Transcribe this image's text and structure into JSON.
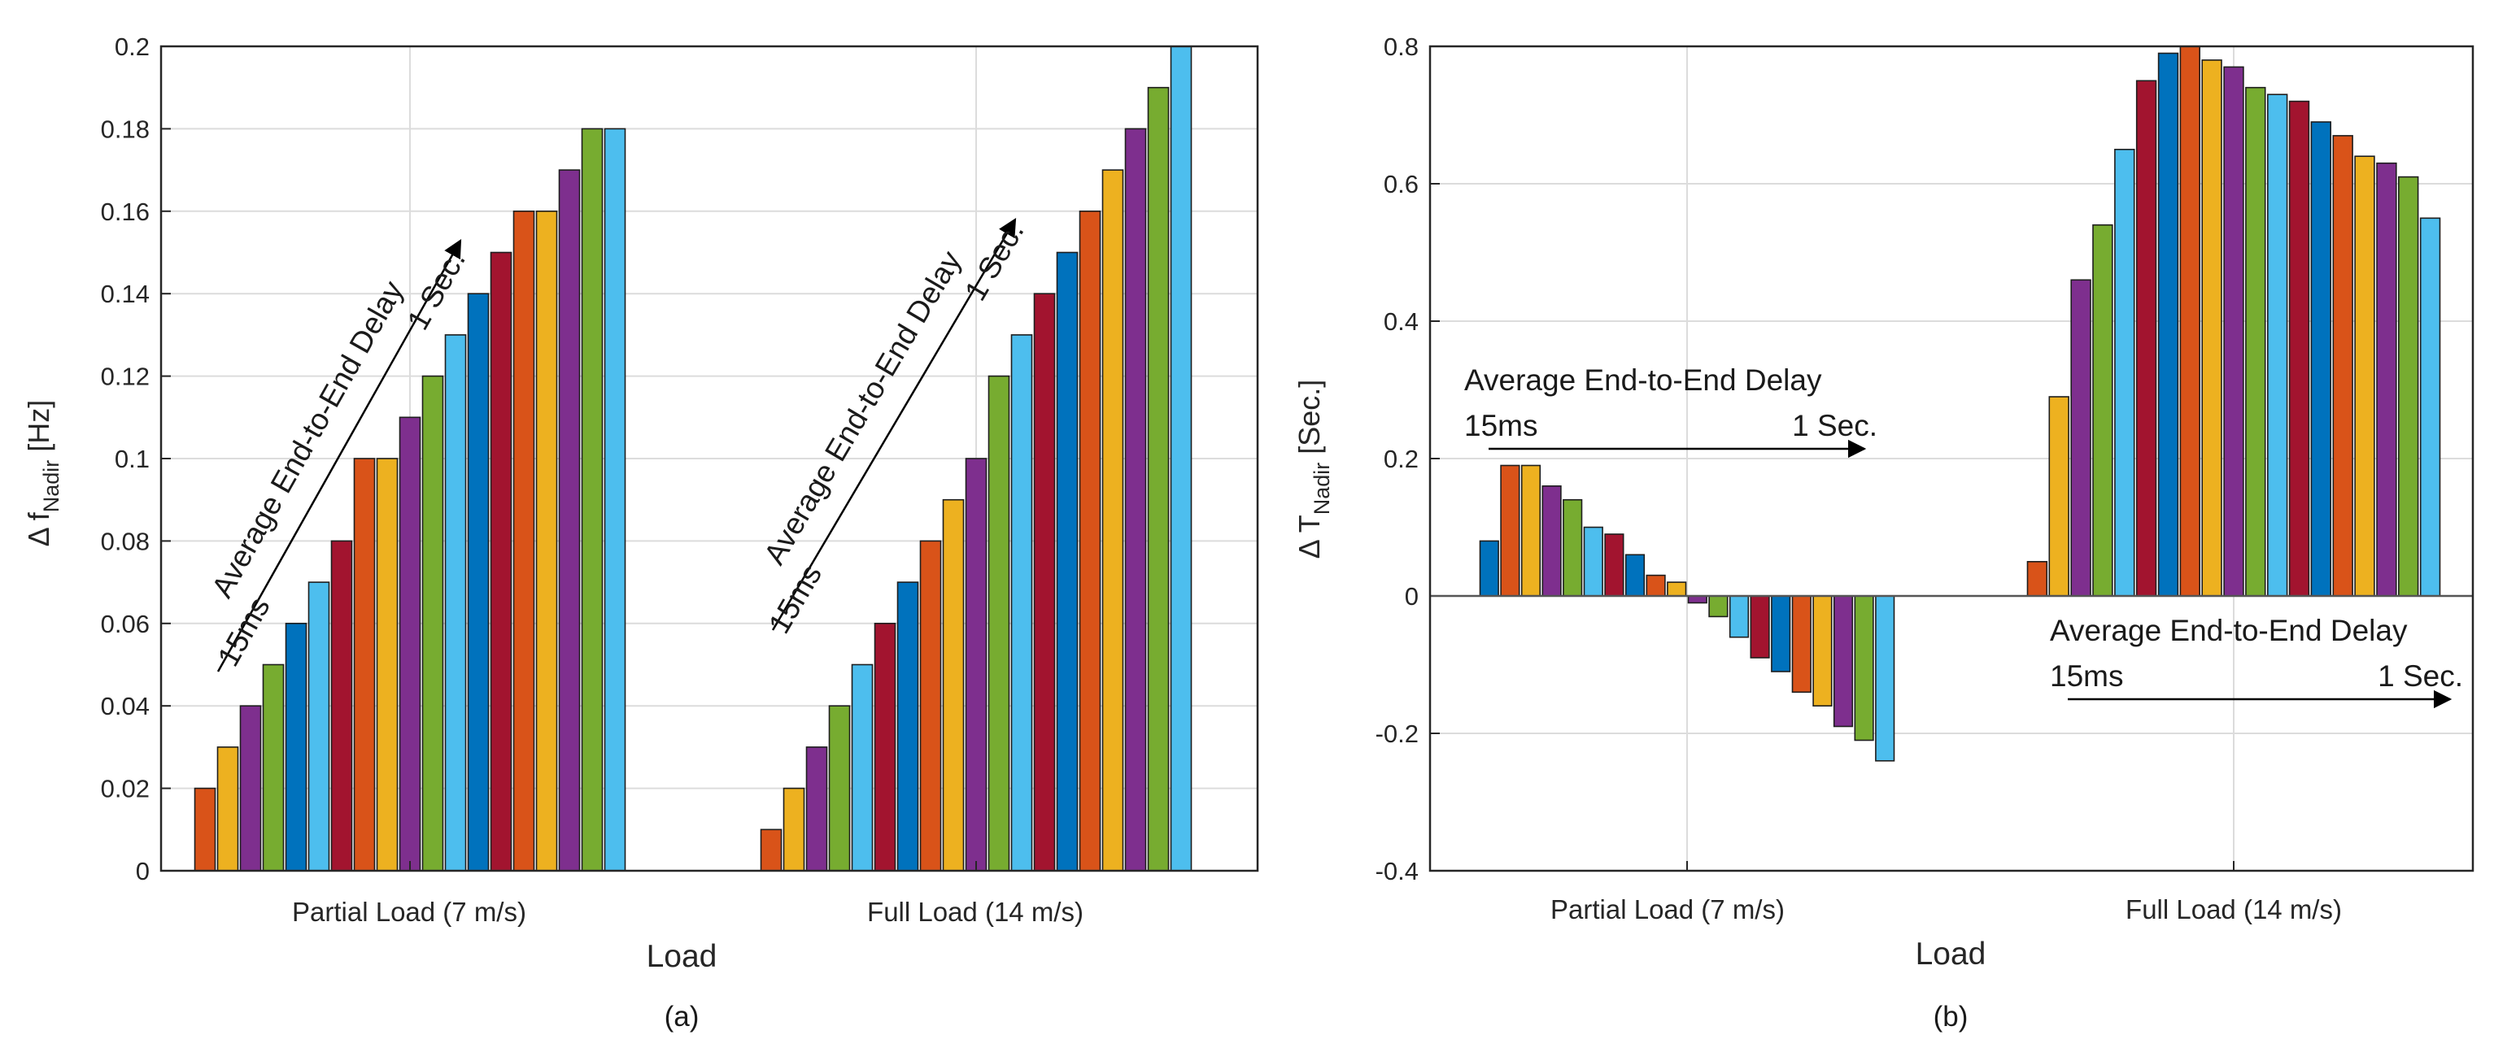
{
  "colors": {
    "bars": [
      "#0072BD",
      "#D95319",
      "#EDB120",
      "#7E2F8E",
      "#77AC30",
      "#4DBEEE",
      "#A2142F"
    ],
    "axis": "#262626",
    "grid": "#dcdcdc"
  },
  "chart_data": [
    {
      "type": "bar",
      "panel": "a",
      "caption": "(a)",
      "xlabel": "Load",
      "ylabel_prefix": "Δ f",
      "ylabel_sub": "Nadir",
      "ylabel_suffix": " [Hz]",
      "ylim": [
        0,
        0.2
      ],
      "yticks": [
        "0",
        "0.02",
        "0.04",
        "0.06",
        "0.08",
        "0.1",
        "0.12",
        "0.14",
        "0.16",
        "0.18",
        "0.2"
      ],
      "categories": [
        "Partial Load (7 m/s)",
        "Full Load (14 m/s)"
      ],
      "groups": [
        {
          "colors": [
            1,
            2,
            3,
            4,
            0,
            5,
            6,
            1,
            2,
            3,
            4,
            5,
            0,
            6,
            1,
            2,
            3,
            4,
            5
          ],
          "values": [
            0.02,
            0.03,
            0.04,
            0.05,
            0.06,
            0.07,
            0.08,
            0.1,
            0.1,
            0.11,
            0.12,
            0.13,
            0.14,
            0.15,
            0.16,
            0.16,
            0.17,
            0.18,
            0.18
          ]
        },
        {
          "colors": [
            1,
            2,
            3,
            4,
            5,
            6,
            0,
            1,
            2,
            3,
            4,
            5,
            6,
            0,
            1,
            2,
            3,
            4,
            5
          ],
          "values": [
            0.01,
            0.02,
            0.03,
            0.04,
            0.05,
            0.06,
            0.07,
            0.08,
            0.09,
            0.1,
            0.12,
            0.13,
            0.14,
            0.15,
            0.16,
            0.17,
            0.18,
            0.19,
            0.2
          ]
        }
      ],
      "annotations": [
        {
          "label": "Average End-to-End Delay",
          "start": "15ms",
          "end": "1 Sec."
        },
        {
          "label": "Average End-to-End Delay",
          "start": "15ms",
          "end": "1 Sec."
        }
      ]
    },
    {
      "type": "bar",
      "panel": "b",
      "caption": "(b)",
      "xlabel": "Load",
      "ylabel_prefix": "Δ T",
      "ylabel_sub": "Nadir",
      "ylabel_suffix": " [Sec.]",
      "ylim": [
        -0.4,
        0.8
      ],
      "yticks": [
        "-0.4",
        "-0.2",
        "0",
        "0.2",
        "0.4",
        "0.6",
        "0.8"
      ],
      "categories": [
        "Partial Load (7 m/s)",
        "Full Load (14 m/s)"
      ],
      "groups": [
        {
          "colors": [
            0,
            1,
            2,
            3,
            4,
            5,
            6,
            0,
            1,
            2,
            3,
            4,
            5,
            6,
            0,
            1,
            2,
            3,
            4,
            5
          ],
          "values": [
            0.08,
            0.19,
            0.19,
            0.16,
            0.14,
            0.1,
            0.09,
            0.06,
            0.03,
            0.02,
            -0.01,
            -0.03,
            -0.06,
            -0.09,
            -0.11,
            -0.14,
            -0.16,
            -0.19,
            -0.21,
            -0.24
          ]
        },
        {
          "colors": [
            1,
            2,
            3,
            4,
            5,
            6,
            0,
            1,
            2,
            3,
            4,
            5,
            6,
            0,
            1,
            2,
            3,
            4,
            5
          ],
          "values": [
            0.05,
            0.29,
            0.46,
            0.54,
            0.65,
            0.75,
            0.79,
            0.8,
            0.78,
            0.77,
            0.74,
            0.73,
            0.72,
            0.69,
            0.67,
            0.64,
            0.63,
            0.61,
            0.55
          ]
        }
      ],
      "annotations": [
        {
          "label": "Average End-to-End Delay",
          "start": "15ms",
          "end": "1 Sec."
        },
        {
          "label": "Average End-to-End Delay",
          "start": "15ms",
          "end": "1 Sec."
        }
      ]
    }
  ]
}
